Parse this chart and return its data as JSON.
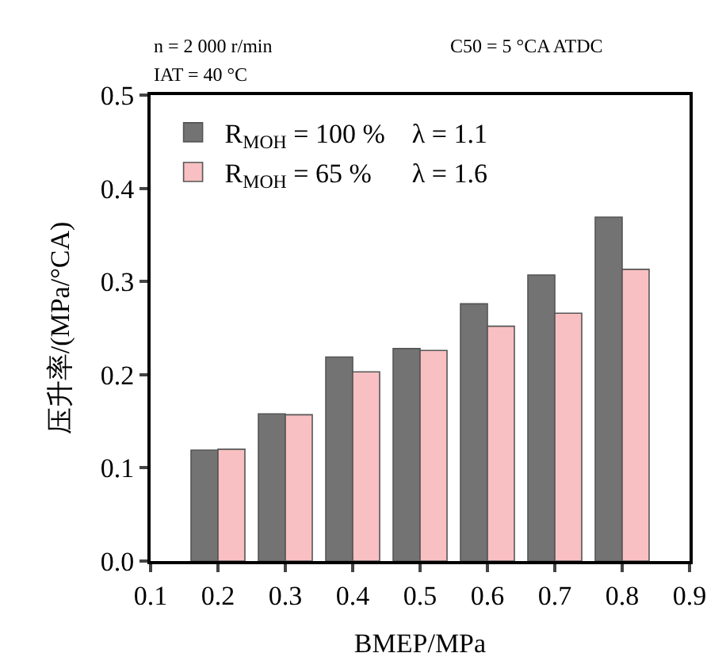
{
  "chart_data": {
    "type": "bar",
    "xlabel": "BMEP/MPa",
    "ylabel": "压升率/(MPa/°CA)",
    "annotations": [
      "n = 2 000 r/min",
      "C50 = 5 °CA ATDC",
      "IAT = 40 °C"
    ],
    "x": [
      0.2,
      0.3,
      0.4,
      0.5,
      0.6,
      0.7,
      0.8
    ],
    "series": [
      {
        "name": "R$_{MOH}$ = 100 %    λ = 1.1",
        "color": "#737373",
        "values": [
          0.119,
          0.158,
          0.219,
          0.228,
          0.276,
          0.307,
          0.369
        ]
      },
      {
        "name": "R$_{MOH}$ = 65 %      λ = 1.6",
        "color": "#f8c0c2",
        "values": [
          0.12,
          0.157,
          0.203,
          0.226,
          0.252,
          0.266,
          0.313
        ]
      }
    ],
    "xlim": [
      0.1,
      0.9
    ],
    "xticks": [
      0.1,
      0.2,
      0.3,
      0.4,
      0.5,
      0.6,
      0.7,
      0.8,
      0.9
    ],
    "ylim": [
      0,
      0.5
    ],
    "yticks": [
      {
        "value": 0,
        "label": "0.0"
      },
      0.1,
      0.2,
      0.3,
      0.4,
      0.5
    ],
    "legend": "top left"
  }
}
